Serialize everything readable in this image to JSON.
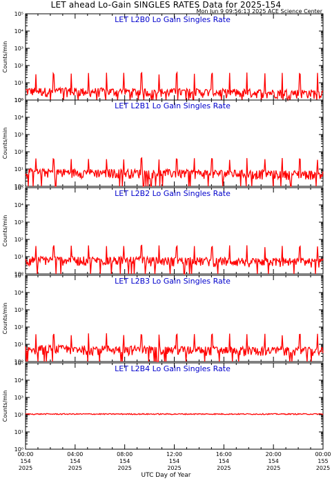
{
  "header": {
    "title": "LET ahead Lo-Gain SINGLES RATES Data for 2025-154",
    "timestamp": "Mon Jun  9 09:56:13 2025 ACE Science Center"
  },
  "xaxis": {
    "title": "UTC Day of Year",
    "ticks": [
      {
        "time": "00:00",
        "day": "154",
        "year": "2025"
      },
      {
        "time": "04:00",
        "day": "154",
        "year": "2025"
      },
      {
        "time": "08:00",
        "day": "154",
        "year": "2025"
      },
      {
        "time": "12:00",
        "day": "154",
        "year": "2025"
      },
      {
        "time": "16:00",
        "day": "154",
        "year": "2025"
      },
      {
        "time": "20:00",
        "day": "154",
        "year": "2025"
      },
      {
        "time": "00:00",
        "day": "155",
        "year": "2025"
      }
    ]
  },
  "colors": {
    "series": "#ff0000",
    "panel_title": "#0000cc",
    "axis": "#000000"
  },
  "chart_data": [
    {
      "type": "line",
      "title": "LET L2B0 Lo Gain Singles Rate",
      "ylabel": "Counts/min",
      "yscale": "log",
      "ylim": [
        1,
        100000
      ],
      "xlim": [
        0,
        24
      ],
      "series": [
        {
          "baseline": 3,
          "spike_peak": 35
        }
      ]
    },
    {
      "type": "line",
      "title": "LET L2B1 Lo Gain Singles Rate",
      "ylabel": "Counts/min",
      "yscale": "log",
      "ylim": [
        1,
        100000
      ],
      "xlim": [
        0,
        24
      ],
      "series": [
        {
          "baseline": 6,
          "spike_peak": 40
        }
      ]
    },
    {
      "type": "line",
      "title": "LET L2B2 Lo Gain Singles Rate",
      "ylabel": "Counts/min",
      "yscale": "log",
      "ylim": [
        1,
        100000
      ],
      "xlim": [
        0,
        24
      ],
      "series": [
        {
          "baseline": 6,
          "spike_peak": 40
        }
      ]
    },
    {
      "type": "line",
      "title": "LET L2B3 Lo Gain Singles Rate",
      "ylabel": "Counts/min",
      "yscale": "log",
      "ylim": [
        1,
        100000
      ],
      "xlim": [
        0,
        24
      ],
      "series": [
        {
          "baseline": 5,
          "spike_peak": 38
        }
      ]
    },
    {
      "type": "line",
      "title": "LET L2B4 Lo Gain Singles Rate",
      "ylabel": "Counts/min",
      "yscale": "log",
      "ylim": [
        1,
        100000
      ],
      "xlim": [
        0,
        24
      ],
      "series": [
        {
          "baseline": 110,
          "spike_peak": 0
        }
      ]
    }
  ],
  "ytick_labels": [
    "10⁰",
    "10¹",
    "10²",
    "10³",
    "10⁴",
    "10⁵"
  ]
}
